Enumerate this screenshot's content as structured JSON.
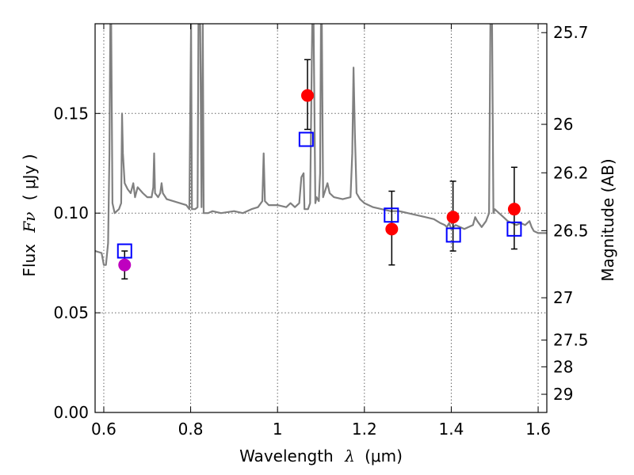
{
  "chart_data": {
    "type": "scatter",
    "xlabel_text": "Wavelength",
    "xlabel_symbol": "λ",
    "xlabel_unit": "(μm)",
    "ylabel_text": "Flux",
    "ylabel_symbol": "Fν",
    "ylabel_unit": "( μJy )",
    "y2label": "Magnitude (AB)",
    "xlim": [
      0.58,
      1.62
    ],
    "ylim": [
      0.0,
      0.195
    ],
    "grid": true,
    "x_ticks": [
      {
        "value": 0.6,
        "label": "0.6"
      },
      {
        "value": 0.8,
        "label": "0.8"
      },
      {
        "value": 1.0,
        "label": "1"
      },
      {
        "value": 1.2,
        "label": "1.2"
      },
      {
        "value": 1.4,
        "label": "1.4"
      },
      {
        "value": 1.6,
        "label": "1.6"
      }
    ],
    "y_ticks": [
      {
        "value": 0.0,
        "label": "0.00"
      },
      {
        "value": 0.05,
        "label": "0.05"
      },
      {
        "value": 0.1,
        "label": "0.10"
      },
      {
        "value": 0.15,
        "label": "0.15"
      }
    ],
    "y2_ticks": [
      {
        "value": 25.7,
        "label": "25.7"
      },
      {
        "value": 26.0,
        "label": "26"
      },
      {
        "value": 26.2,
        "label": "26.2"
      },
      {
        "value": 26.5,
        "label": "26.5"
      },
      {
        "value": 27.0,
        "label": "27"
      },
      {
        "value": 27.5,
        "label": "27.5"
      },
      {
        "value": 28.0,
        "label": "28"
      },
      {
        "value": 29.0,
        "label": "29"
      }
    ],
    "series": [
      {
        "kind": "spectrum",
        "color": "#808080",
        "points": [
          [
            0.58,
            0.081
          ],
          [
            0.595,
            0.08
          ],
          [
            0.6,
            0.074
          ],
          [
            0.605,
            0.074
          ],
          [
            0.61,
            0.085
          ],
          [
            0.613,
            0.13
          ],
          [
            0.615,
            0.195
          ],
          [
            0.617,
            0.195
          ],
          [
            0.62,
            0.105
          ],
          [
            0.625,
            0.1
          ],
          [
            0.63,
            0.101
          ],
          [
            0.635,
            0.102
          ],
          [
            0.64,
            0.105
          ],
          [
            0.642,
            0.15
          ],
          [
            0.644,
            0.13
          ],
          [
            0.648,
            0.115
          ],
          [
            0.655,
            0.112
          ],
          [
            0.662,
            0.11
          ],
          [
            0.668,
            0.115
          ],
          [
            0.672,
            0.108
          ],
          [
            0.678,
            0.113
          ],
          [
            0.682,
            0.112
          ],
          [
            0.69,
            0.11
          ],
          [
            0.7,
            0.108
          ],
          [
            0.71,
            0.108
          ],
          [
            0.714,
            0.113
          ],
          [
            0.716,
            0.13
          ],
          [
            0.718,
            0.11
          ],
          [
            0.725,
            0.108
          ],
          [
            0.73,
            0.11
          ],
          [
            0.733,
            0.115
          ],
          [
            0.736,
            0.11
          ],
          [
            0.745,
            0.107
          ],
          [
            0.76,
            0.106
          ],
          [
            0.775,
            0.105
          ],
          [
            0.79,
            0.104
          ],
          [
            0.797,
            0.102
          ],
          [
            0.801,
            0.195
          ],
          [
            0.803,
            0.102
          ],
          [
            0.81,
            0.102
          ],
          [
            0.816,
            0.103
          ],
          [
            0.818,
            0.195
          ],
          [
            0.822,
            0.195
          ],
          [
            0.825,
            0.103
          ],
          [
            0.828,
            0.195
          ],
          [
            0.83,
            0.1
          ],
          [
            0.84,
            0.1
          ],
          [
            0.85,
            0.101
          ],
          [
            0.87,
            0.1
          ],
          [
            0.9,
            0.101
          ],
          [
            0.92,
            0.1
          ],
          [
            0.94,
            0.102
          ],
          [
            0.955,
            0.103
          ],
          [
            0.965,
            0.106
          ],
          [
            0.968,
            0.13
          ],
          [
            0.971,
            0.106
          ],
          [
            0.98,
            0.104
          ],
          [
            1.0,
            0.104
          ],
          [
            1.02,
            0.103
          ],
          [
            1.03,
            0.105
          ],
          [
            1.04,
            0.103
          ],
          [
            1.05,
            0.105
          ],
          [
            1.055,
            0.118
          ],
          [
            1.06,
            0.12
          ],
          [
            1.062,
            0.102
          ],
          [
            1.07,
            0.102
          ],
          [
            1.075,
            0.105
          ],
          [
            1.08,
            0.195
          ],
          [
            1.083,
            0.195
          ],
          [
            1.087,
            0.105
          ],
          [
            1.09,
            0.108
          ],
          [
            1.095,
            0.106
          ],
          [
            1.098,
            0.12
          ],
          [
            1.1,
            0.195
          ],
          [
            1.102,
            0.195
          ],
          [
            1.105,
            0.108
          ],
          [
            1.115,
            0.115
          ],
          [
            1.12,
            0.11
          ],
          [
            1.13,
            0.108
          ],
          [
            1.15,
            0.107
          ],
          [
            1.168,
            0.108
          ],
          [
            1.172,
            0.13
          ],
          [
            1.175,
            0.173
          ],
          [
            1.178,
            0.14
          ],
          [
            1.182,
            0.11
          ],
          [
            1.19,
            0.107
          ],
          [
            1.2,
            0.105
          ],
          [
            1.22,
            0.103
          ],
          [
            1.24,
            0.102
          ],
          [
            1.26,
            0.101
          ],
          [
            1.28,
            0.101
          ],
          [
            1.3,
            0.1
          ],
          [
            1.32,
            0.099
          ],
          [
            1.34,
            0.098
          ],
          [
            1.36,
            0.097
          ],
          [
            1.375,
            0.095
          ],
          [
            1.385,
            0.094
          ],
          [
            1.39,
            0.093
          ],
          [
            1.395,
            0.095
          ],
          [
            1.4,
            0.092
          ],
          [
            1.41,
            0.094
          ],
          [
            1.42,
            0.093
          ],
          [
            1.43,
            0.092
          ],
          [
            1.44,
            0.093
          ],
          [
            1.45,
            0.094
          ],
          [
            1.455,
            0.098
          ],
          [
            1.46,
            0.096
          ],
          [
            1.47,
            0.093
          ],
          [
            1.48,
            0.096
          ],
          [
            1.487,
            0.1
          ],
          [
            1.49,
            0.195
          ],
          [
            1.494,
            0.195
          ],
          [
            1.497,
            0.1
          ],
          [
            1.5,
            0.102
          ],
          [
            1.51,
            0.1
          ],
          [
            1.52,
            0.098
          ],
          [
            1.53,
            0.096
          ],
          [
            1.54,
            0.095
          ],
          [
            1.55,
            0.094
          ],
          [
            1.56,
            0.095
          ],
          [
            1.57,
            0.094
          ],
          [
            1.58,
            0.096
          ],
          [
            1.585,
            0.093
          ],
          [
            1.59,
            0.091
          ],
          [
            1.6,
            0.09
          ],
          [
            1.61,
            0.09
          ],
          [
            1.62,
            0.09
          ]
        ]
      },
      {
        "kind": "model-squares",
        "color": "#0000ff",
        "points": [
          [
            0.648,
            0.081
          ],
          [
            1.066,
            0.137
          ],
          [
            1.262,
            0.099
          ],
          [
            1.405,
            0.089
          ],
          [
            1.545,
            0.092
          ]
        ]
      },
      {
        "kind": "observed-red",
        "color": "#ff0000",
        "points": [
          {
            "x": 1.069,
            "y": 0.159,
            "err_low": 0.142,
            "err_high": 0.177
          },
          {
            "x": 1.263,
            "y": 0.092,
            "err_low": 0.074,
            "err_high": 0.111
          },
          {
            "x": 1.404,
            "y": 0.098,
            "err_low": 0.081,
            "err_high": 0.116
          },
          {
            "x": 1.545,
            "y": 0.102,
            "err_low": 0.082,
            "err_high": 0.123
          }
        ]
      },
      {
        "kind": "observed-purple",
        "color": "#bf00bf",
        "points": [
          {
            "x": 0.648,
            "y": 0.074,
            "err_low": 0.067,
            "err_high": 0.081
          }
        ]
      }
    ]
  }
}
